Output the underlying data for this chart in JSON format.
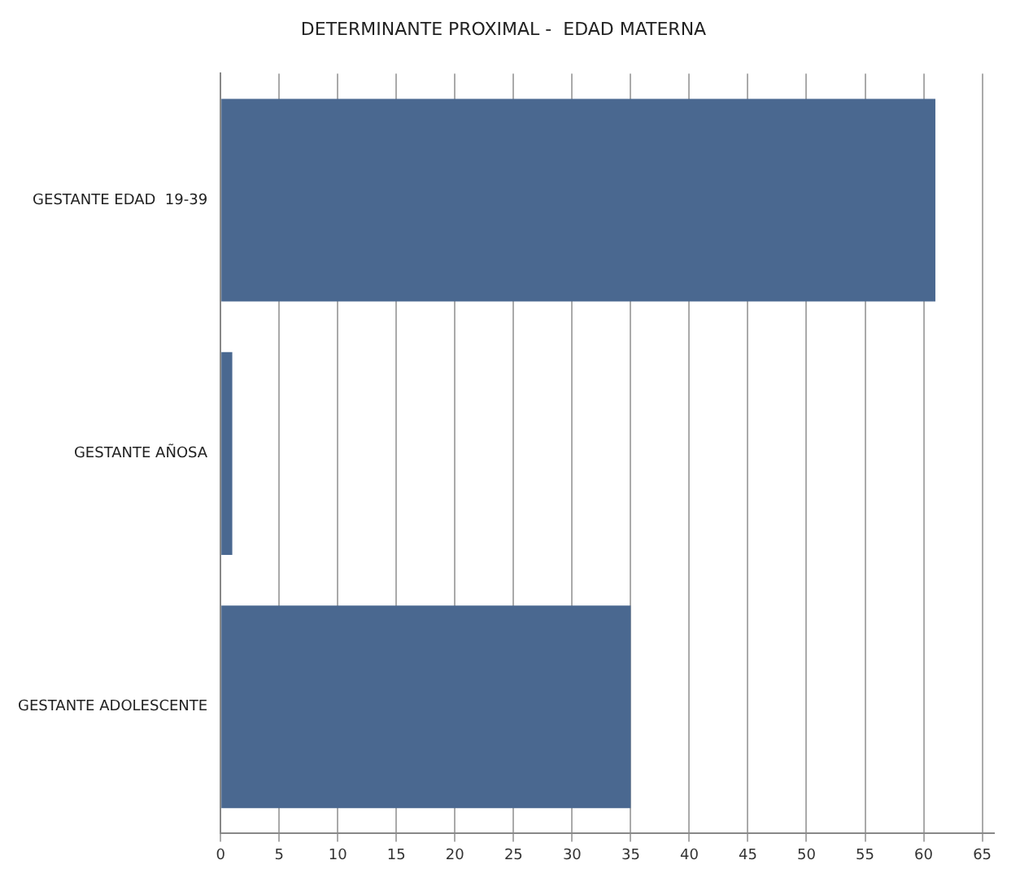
{
  "chart_data": {
    "type": "bar",
    "orientation": "horizontal",
    "title": "DETERMINANTE PROXIMAL -  EDAD MATERNA",
    "categories": [
      "GESTANTE EDAD  19-39",
      "GESTANTE AÑOSA",
      "GESTANTE ADOLESCENTE"
    ],
    "values": [
      61,
      1,
      35
    ],
    "color": "#4a6890",
    "xlim": [
      0,
      66
    ],
    "xticks": [
      0,
      5,
      10,
      15,
      20,
      25,
      30,
      35,
      40,
      45,
      50,
      55,
      60,
      65
    ],
    "grid": "x",
    "legend": false
  }
}
